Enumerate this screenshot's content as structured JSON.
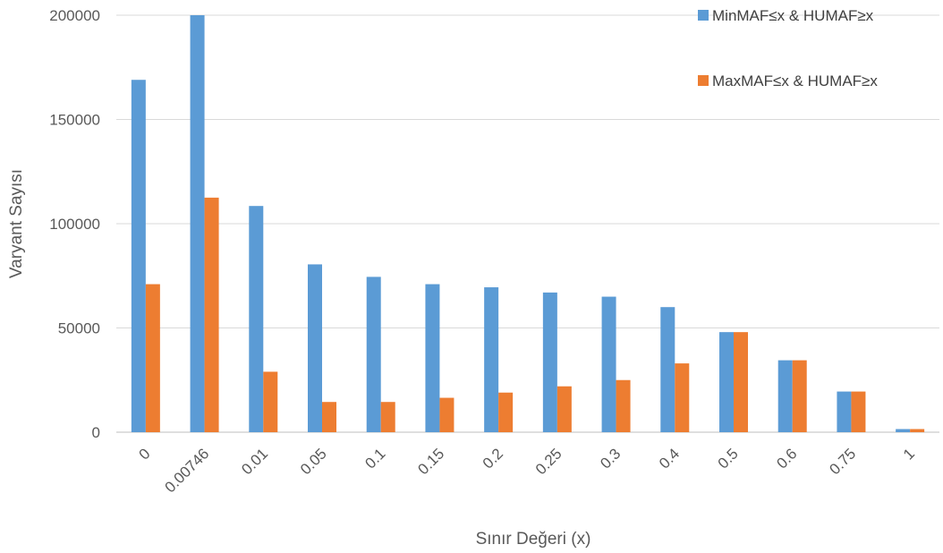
{
  "chart_data": {
    "type": "bar",
    "xlabel": "Sınır Değeri (x)",
    "ylabel": "Varyant Sayısı",
    "categories": [
      "0",
      "0.00746",
      "0.01",
      "0.05",
      "0.1",
      "0.15",
      "0.2",
      "0.25",
      "0.3",
      "0.4",
      "0.5",
      "0.6",
      "0.75",
      "1"
    ],
    "ylim": [
      0,
      200000
    ],
    "yticks": [
      "0",
      "50000",
      "100000",
      "150000",
      "200000"
    ],
    "ytick_values": [
      0,
      50000,
      100000,
      150000,
      200000
    ],
    "grid": true,
    "legend_position": "top-right",
    "series": [
      {
        "name": "MinMAF≤x & HUMAF≥x",
        "color": "#5B9BD5",
        "values": [
          169000,
          210000,
          108500,
          80500,
          74500,
          71000,
          69500,
          67000,
          65000,
          60000,
          48000,
          34500,
          19500,
          1500
        ]
      },
      {
        "name": "MaxMAF≤x & HUMAF≥x",
        "color": "#ED7D31",
        "values": [
          71000,
          112500,
          29000,
          14500,
          14500,
          16500,
          19000,
          22000,
          25000,
          33000,
          48000,
          34500,
          19500,
          1500
        ]
      }
    ]
  }
}
